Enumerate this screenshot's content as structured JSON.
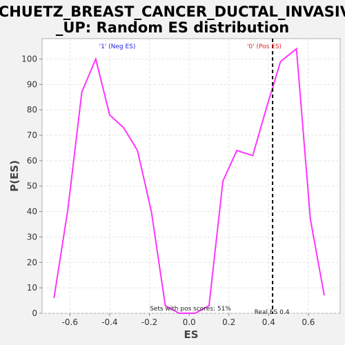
{
  "chart_data": {
    "type": "line",
    "title_lines": [
      "SCHUETZ_BREAST_CANCER_DUCTAL_INVASIVE",
      "_UP: Random ES distribution"
    ],
    "xlabel": "ES",
    "ylabel": "P(ES)",
    "xlim": [
      -0.74,
      0.76
    ],
    "ylim": [
      0,
      108
    ],
    "xticks": [
      -0.6,
      -0.4,
      -0.2,
      0.0,
      0.2,
      0.4,
      0.6
    ],
    "xtick_labels": [
      "-0.6",
      "-0.4",
      "-0.2",
      "0.0",
      "0.2",
      "0.4",
      "0.6"
    ],
    "yticks": [
      0,
      10,
      20,
      30,
      40,
      50,
      60,
      70,
      80,
      90,
      100
    ],
    "ytick_labels": [
      "0",
      "10",
      "20",
      "30",
      "40",
      "50",
      "60",
      "70",
      "80",
      "90",
      "100"
    ],
    "grid": true,
    "series": [
      {
        "name": "Random ES",
        "color": "#ff33ff",
        "x": [
          -0.68,
          -0.61,
          -0.54,
          -0.47,
          -0.4,
          -0.33,
          -0.26,
          -0.19,
          -0.12,
          -0.05,
          0.03,
          0.1,
          0.17,
          0.24,
          0.32,
          0.39,
          0.46,
          0.54,
          0.61,
          0.68
        ],
        "y": [
          6,
          41,
          87,
          100,
          78,
          73,
          64,
          40,
          3,
          0,
          0,
          3,
          52,
          64,
          62,
          81,
          99,
          104,
          37,
          7
        ]
      }
    ],
    "real_es": {
      "value": 0.42,
      "label": "Real ES 0.4",
      "color": "#000000"
    },
    "annotations": {
      "neg_label": "'1' (Neg ES)",
      "neg_color": "#2222dd",
      "pos_label": "'0' (Pos ES)",
      "pos_color": "#dd2222",
      "pos_fraction_text": "Sets with pos scores: 51%"
    }
  }
}
